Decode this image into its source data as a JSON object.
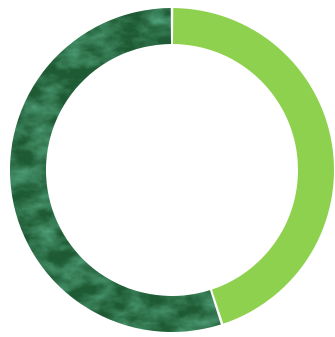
{
  "chart_data": {
    "type": "pie",
    "donut": true,
    "title": "",
    "slices": [
      {
        "value": 45,
        "color": "#8ed14e"
      },
      {
        "value": 55,
        "color": "#1e5a33",
        "texture": "marble"
      }
    ],
    "start_angle_deg": 0,
    "direction": "clockwise",
    "legend": "none"
  }
}
